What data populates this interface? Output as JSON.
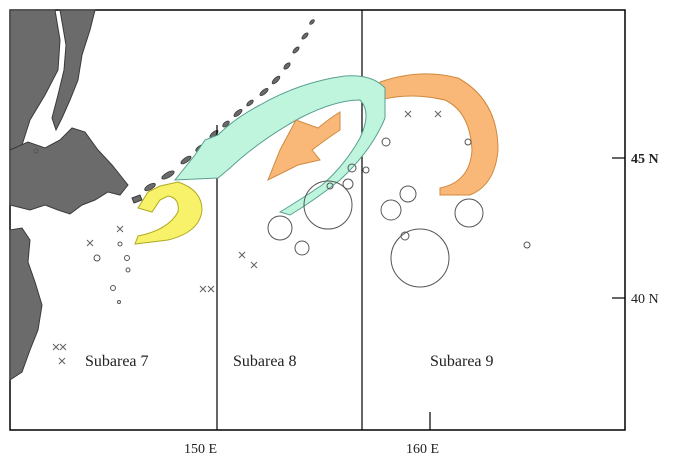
{
  "map": {
    "subareas": [
      "Subarea 7",
      "Subarea 8",
      "Subarea 9"
    ],
    "longitude_labels": [
      "150 E",
      "160 E"
    ],
    "latitude_labels": [
      "45 N",
      "40 N"
    ],
    "colors": {
      "land": "#6b6b6b",
      "land_outline": "#3a3a3a",
      "arrow_cyan": "#bff5dc",
      "arrow_orange": "#f9b877",
      "arrow_yellow": "#f7f26a",
      "frame": "#000000"
    },
    "symbols": {
      "circle_marker": "open-circle",
      "cross_marker": "x-cross"
    }
  }
}
